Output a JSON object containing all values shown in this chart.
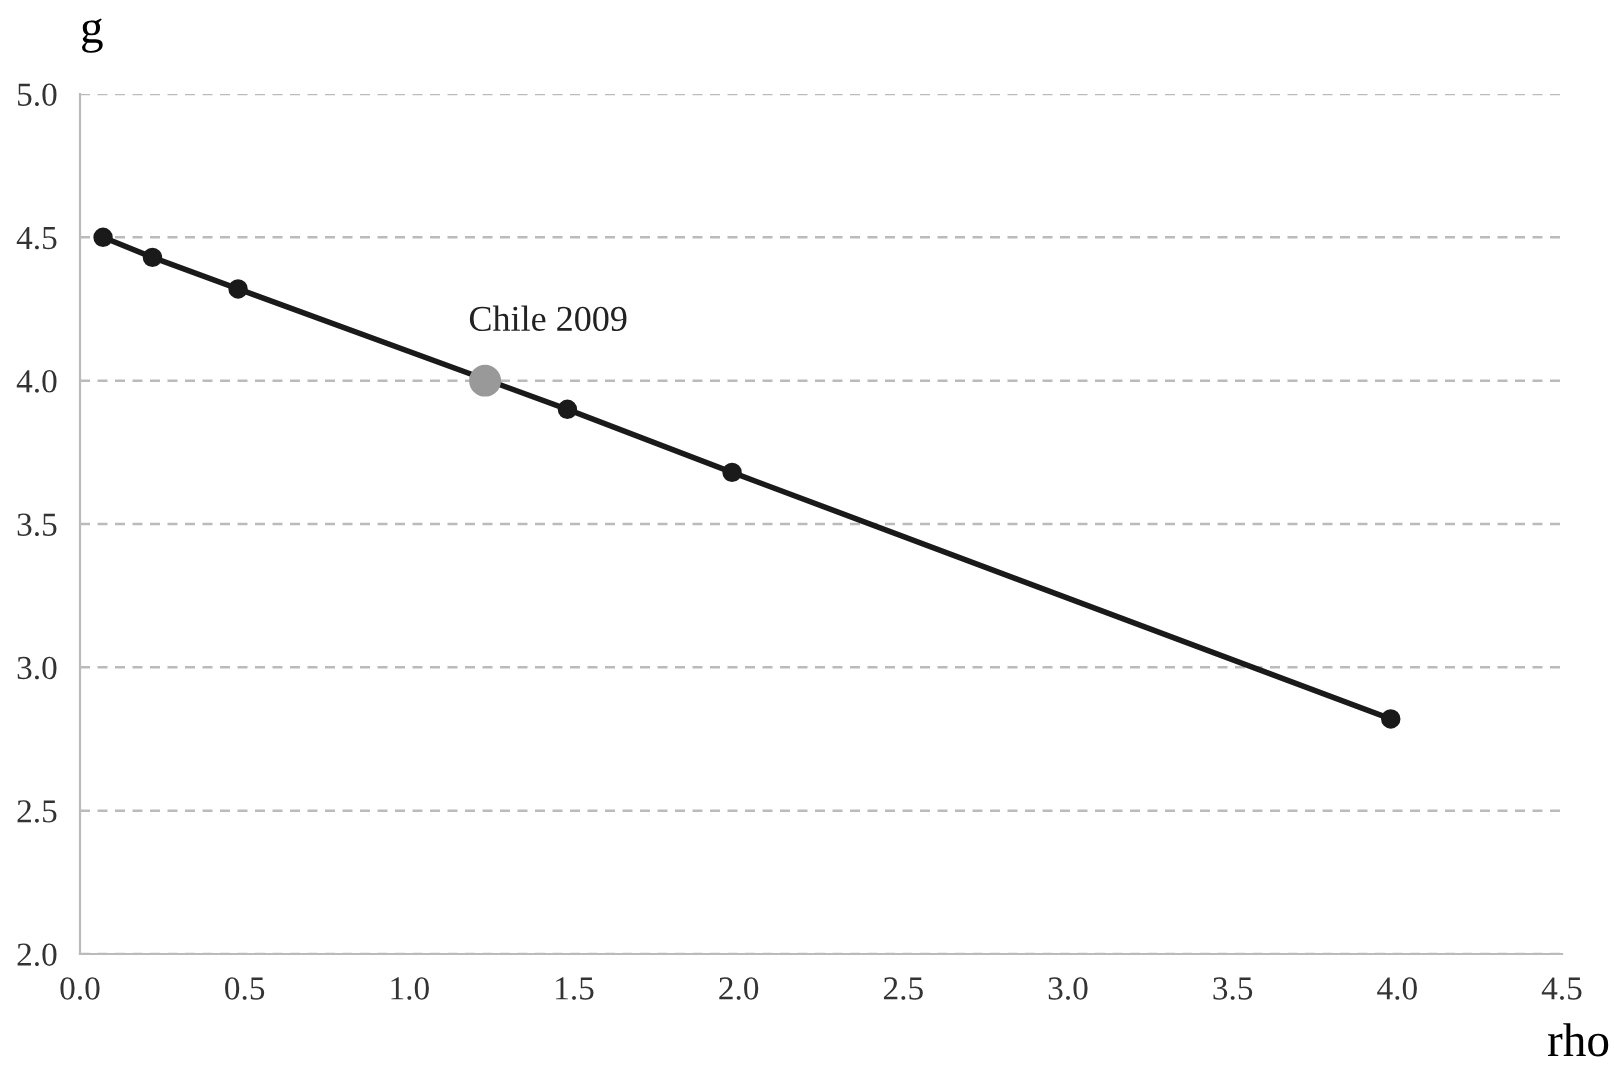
{
  "chart_data": {
    "type": "line",
    "xlabel": "rho",
    "ylabel": "g",
    "series": [
      {
        "color": "#1a1a1a",
        "marker": "circle",
        "x": [
          0.07,
          0.22,
          0.48,
          1.48,
          1.98,
          3.98
        ],
        "values": [
          4.5,
          4.43,
          4.32,
          3.9,
          3.68,
          2.82
        ]
      },
      {
        "type": "scatter",
        "color": "#999999",
        "marker": "circle",
        "x": [
          1.23
        ],
        "values": [
          4.0
        ]
      }
    ],
    "annotations": [
      {
        "text": "Chile 2009",
        "x": 1.23,
        "y": 4.0
      }
    ],
    "xlim": [
      0,
      4.5
    ],
    "xticks": [
      {
        "value": 0,
        "label": "0.0"
      },
      0.5,
      {
        "value": 1,
        "label": "1.0"
      },
      1.5,
      {
        "value": 2,
        "label": "2.0"
      },
      2.5,
      {
        "value": 3,
        "label": "3.0"
      },
      3.5,
      {
        "value": 4,
        "label": "4.0"
      },
      4.5
    ],
    "ylim": [
      2,
      5
    ],
    "yticks": [
      {
        "value": 2,
        "label": "2.0"
      },
      2.5,
      {
        "value": 3,
        "label": "3.0"
      },
      3.5,
      {
        "value": 4,
        "label": "4.0"
      },
      4.5,
      {
        "value": 5,
        "label": "5.0"
      }
    ],
    "grid": "y",
    "legend": false
  }
}
